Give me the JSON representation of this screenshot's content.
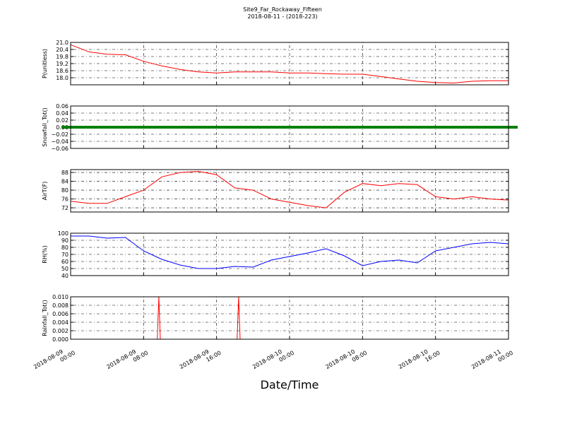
{
  "title": "Site9_Far_Rockaway_Fifteen",
  "subtitle": "2018-08-11 - (2018-223)",
  "xaxis": {
    "label": "Date/Time",
    "xlim": [
      "2018-08-09 00:00",
      "2018-08-11 00:00"
    ],
    "xticks": [
      "2018-08-09 00:00",
      "2018-08-09 08:00",
      "2018-08-09 16:00",
      "2018-08-10 00:00",
      "2018-08-10 08:00",
      "2018-08-10 16:00",
      "2018-08-11 00:00"
    ],
    "grid": true
  },
  "chart_data": [
    {
      "type": "line",
      "ylabel": "P(unitless)",
      "color": "#ff0000",
      "x": [
        "2018-08-09 00:00",
        "2018-08-09 02:00",
        "2018-08-09 04:00",
        "2018-08-09 06:00",
        "2018-08-09 08:00",
        "2018-08-09 10:00",
        "2018-08-09 12:00",
        "2018-08-09 14:00",
        "2018-08-09 16:00",
        "2018-08-09 18:00",
        "2018-08-09 20:00",
        "2018-08-09 22:00",
        "2018-08-10 00:00",
        "2018-08-10 02:00",
        "2018-08-10 04:00",
        "2018-08-10 06:00",
        "2018-08-10 08:00",
        "2018-08-10 10:00",
        "2018-08-10 12:00",
        "2018-08-10 14:00",
        "2018-08-10 16:00",
        "2018-08-10 18:00",
        "2018-08-10 20:00",
        "2018-08-10 22:00",
        "2018-08-11 00:00"
      ],
      "values": [
        20.8,
        20.2,
        20.0,
        19.95,
        19.4,
        19.0,
        18.7,
        18.5,
        18.4,
        18.5,
        18.5,
        18.5,
        18.4,
        18.4,
        18.35,
        18.3,
        18.3,
        18.1,
        17.9,
        17.7,
        17.6,
        17.55,
        17.7,
        17.75,
        17.75
      ],
      "ylim": [
        17.4,
        21.0
      ],
      "yticks": [
        {
          "value": 18,
          "label": "18.0"
        },
        18.6,
        19.2,
        19.8,
        20.4,
        {
          "value": 21,
          "label": "21.0"
        }
      ],
      "grid": true
    },
    {
      "type": "scatter",
      "ylabel": "Snowfall_Tot()",
      "color": "#008000",
      "x": [
        "2018-08-09 00:00",
        "2018-08-09 02:00",
        "2018-08-09 04:00",
        "2018-08-09 06:00",
        "2018-08-09 08:00",
        "2018-08-09 10:00",
        "2018-08-09 12:00",
        "2018-08-09 14:00",
        "2018-08-09 16:00",
        "2018-08-09 18:00",
        "2018-08-09 20:00",
        "2018-08-09 22:00",
        "2018-08-10 00:00",
        "2018-08-10 02:00",
        "2018-08-10 04:00",
        "2018-08-10 06:00",
        "2018-08-10 08:00",
        "2018-08-10 10:00",
        "2018-08-10 12:00",
        "2018-08-10 14:00",
        "2018-08-10 16:00",
        "2018-08-10 18:00",
        "2018-08-10 20:00",
        "2018-08-10 22:00",
        "2018-08-11 00:00"
      ],
      "values": [
        0,
        0,
        0,
        0,
        0,
        0,
        0,
        0,
        0,
        0,
        0,
        0,
        0,
        0,
        0,
        0,
        0,
        0,
        0,
        0,
        0,
        0,
        0,
        0,
        0
      ],
      "ylim": [
        -0.06,
        0.06
      ],
      "yticks": [
        {
          "value": -0.06,
          "label": "−0.06"
        },
        {
          "value": -0.04,
          "label": "−0.04"
        },
        {
          "value": -0.02,
          "label": "−0.02"
        },
        {
          "value": 0,
          "label": "0.00"
        },
        0.02,
        0.04,
        0.06
      ],
      "grid": true
    },
    {
      "type": "line",
      "ylabel": "AirT(F)",
      "color": "#ff0000",
      "x": [
        "2018-08-09 00:00",
        "2018-08-09 02:00",
        "2018-08-09 04:00",
        "2018-08-09 06:00",
        "2018-08-09 08:00",
        "2018-08-09 10:00",
        "2018-08-09 12:00",
        "2018-08-09 14:00",
        "2018-08-09 16:00",
        "2018-08-09 18:00",
        "2018-08-09 20:00",
        "2018-08-09 22:00",
        "2018-08-10 00:00",
        "2018-08-10 02:00",
        "2018-08-10 04:00",
        "2018-08-10 06:00",
        "2018-08-10 08:00",
        "2018-08-10 10:00",
        "2018-08-10 12:00",
        "2018-08-10 14:00",
        "2018-08-10 16:00",
        "2018-08-10 18:00",
        "2018-08-10 20:00",
        "2018-08-10 22:00",
        "2018-08-11 00:00"
      ],
      "values": [
        75,
        74,
        74,
        77,
        80,
        86,
        88,
        88.5,
        87,
        81,
        80,
        76,
        74.5,
        73,
        72,
        79,
        83,
        82,
        83,
        82.5,
        77,
        76,
        77,
        76,
        75.5
      ],
      "ylim": [
        70.1,
        89.3
      ],
      "yticks": [
        72,
        76,
        80,
        84,
        88
      ],
      "grid": true
    },
    {
      "type": "line",
      "ylabel": "RH(%)",
      "color": "#0000ff",
      "x": [
        "2018-08-09 00:00",
        "2018-08-09 02:00",
        "2018-08-09 04:00",
        "2018-08-09 06:00",
        "2018-08-09 08:00",
        "2018-08-09 10:00",
        "2018-08-09 12:00",
        "2018-08-09 14:00",
        "2018-08-09 16:00",
        "2018-08-09 18:00",
        "2018-08-09 20:00",
        "2018-08-09 22:00",
        "2018-08-10 00:00",
        "2018-08-10 02:00",
        "2018-08-10 04:00",
        "2018-08-10 06:00",
        "2018-08-10 08:00",
        "2018-08-10 10:00",
        "2018-08-10 12:00",
        "2018-08-10 14:00",
        "2018-08-10 16:00",
        "2018-08-10 18:00",
        "2018-08-10 20:00",
        "2018-08-10 22:00",
        "2018-08-11 00:00"
      ],
      "values": [
        96,
        96,
        93,
        94,
        75,
        63,
        55,
        50,
        50,
        53,
        52,
        62,
        67,
        72,
        78,
        68,
        54,
        60,
        62,
        58,
        75,
        80,
        85,
        87,
        85
      ],
      "ylim": [
        40,
        100
      ],
      "yticks": [
        40,
        50,
        60,
        70,
        80,
        90,
        100
      ],
      "grid": true
    },
    {
      "type": "line",
      "ylabel": "Rainfall_Tot()",
      "color": "#ff0000",
      "x": [
        "2018-08-09 00:00",
        "2018-08-09 09:30",
        "2018-08-09 09:40",
        "2018-08-09 09:50",
        "2018-08-09 18:15",
        "2018-08-09 18:25",
        "2018-08-09 18:35",
        "2018-08-11 00:00"
      ],
      "values": [
        0,
        0,
        0.01,
        0,
        0,
        0.01,
        0,
        0
      ],
      "ylim": [
        0,
        0.01
      ],
      "yticks": [
        {
          "value": 0,
          "label": "0.000"
        },
        0.002,
        0.004,
        0.006,
        0.008,
        {
          "value": 0.01,
          "label": "0.010"
        }
      ],
      "grid": true
    }
  ]
}
